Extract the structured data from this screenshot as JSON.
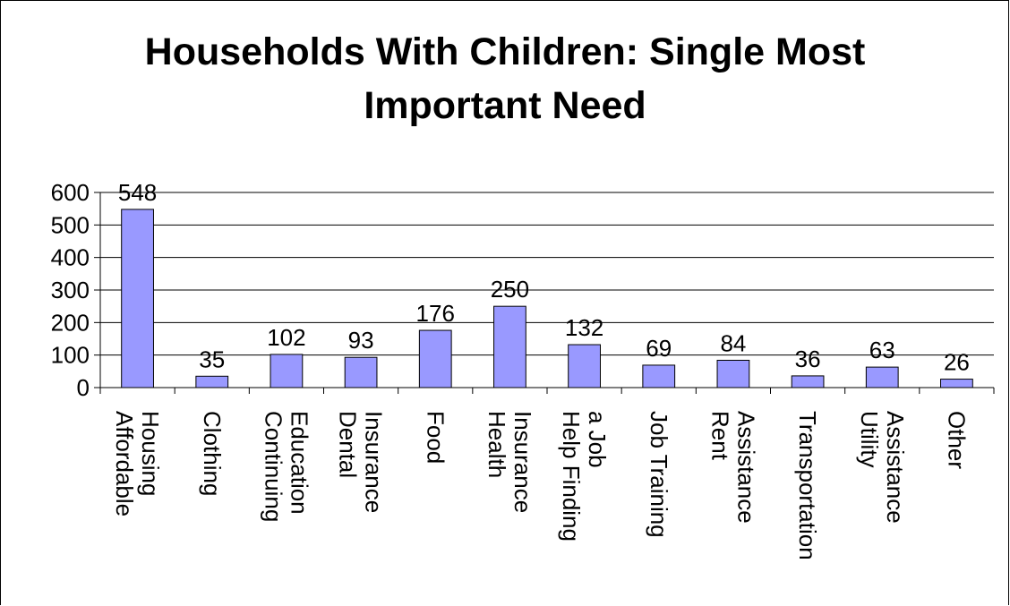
{
  "chart_data": {
    "type": "bar",
    "title_lines": [
      "Households With Children:  Single Most",
      "Important Need"
    ],
    "categories": [
      [
        "Affordable",
        "Housing"
      ],
      [
        "Clothing"
      ],
      [
        "Continuing",
        "Education"
      ],
      [
        "Dental",
        "Insurance"
      ],
      [
        "Food"
      ],
      [
        "Health",
        "Insurance"
      ],
      [
        "Help Finding",
        "a Job"
      ],
      [
        "Job Training"
      ],
      [
        "Rent",
        "Assistance"
      ],
      [
        "Transportation"
      ],
      [
        "Utility",
        "Assistance"
      ],
      [
        "Other"
      ]
    ],
    "values": [
      548,
      35,
      102,
      93,
      176,
      250,
      132,
      69,
      84,
      36,
      63,
      26
    ],
    "ylim": [
      0,
      600
    ],
    "yticks": [
      0,
      100,
      200,
      300,
      400,
      500,
      600
    ],
    "grid": true,
    "bar_color": "#9999ff",
    "xlabel": "",
    "ylabel": ""
  }
}
